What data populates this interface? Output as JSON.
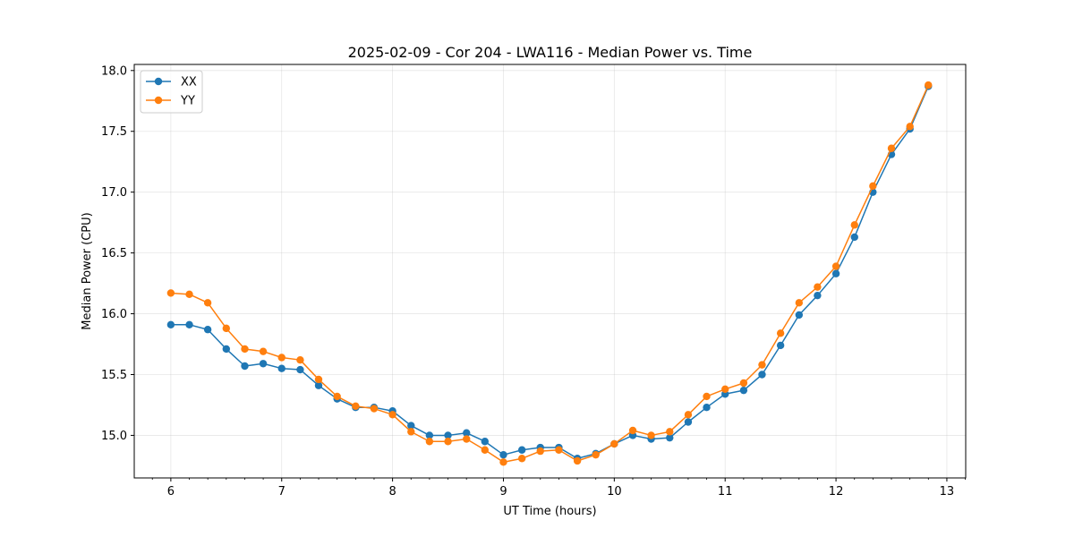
{
  "chart_data": {
    "type": "line",
    "title": "2025-02-09 - Cor 204 - LWA116 - Median Power vs. Time",
    "xlabel": "UT Time (hours)",
    "ylabel": "Median Power (CPU)",
    "xlim": [
      5.67,
      13.17
    ],
    "ylim": [
      14.65,
      18.05
    ],
    "xticks": [
      6,
      7,
      8,
      9,
      10,
      11,
      12,
      13
    ],
    "xtick_labels": [
      "6",
      "7",
      "8",
      "9",
      "10",
      "11",
      "12",
      "13"
    ],
    "yticks": [
      15.0,
      15.5,
      16.0,
      16.5,
      17.0,
      17.5,
      18.0
    ],
    "ytick_labels": [
      "15.0",
      "15.5",
      "16.0",
      "16.5",
      "17.0",
      "17.5",
      "18.0"
    ],
    "grid": true,
    "legend_position": "top-left",
    "x": [
      6.0,
      6.167,
      6.333,
      6.5,
      6.667,
      6.833,
      7.0,
      7.167,
      7.333,
      7.5,
      7.667,
      7.833,
      8.0,
      8.167,
      8.333,
      8.5,
      8.667,
      8.833,
      9.0,
      9.167,
      9.333,
      9.5,
      9.667,
      9.833,
      10.0,
      10.167,
      10.333,
      10.5,
      10.667,
      10.833,
      11.0,
      11.167,
      11.333,
      11.5,
      11.667,
      11.833,
      12.0,
      12.167,
      12.333,
      12.5,
      12.667,
      12.833
    ],
    "series": [
      {
        "name": "XX",
        "color": "#1f77b4",
        "values": [
          15.91,
          15.91,
          15.87,
          15.71,
          15.57,
          15.59,
          15.55,
          15.54,
          15.41,
          15.3,
          15.23,
          15.23,
          15.2,
          15.08,
          15.0,
          15.0,
          15.02,
          14.95,
          14.84,
          14.88,
          14.9,
          14.9,
          14.81,
          14.85,
          14.93,
          15.0,
          14.97,
          14.98,
          15.11,
          15.23,
          15.34,
          15.37,
          15.5,
          15.74,
          15.99,
          16.15,
          16.33,
          16.63,
          17.0,
          17.31,
          17.52,
          17.87
        ]
      },
      {
        "name": "YY",
        "color": "#ff7f0e",
        "values": [
          16.17,
          16.16,
          16.09,
          15.88,
          15.71,
          15.69,
          15.64,
          15.62,
          15.46,
          15.32,
          15.24,
          15.22,
          15.17,
          15.03,
          14.95,
          14.95,
          14.97,
          14.88,
          14.78,
          14.81,
          14.87,
          14.88,
          14.79,
          14.84,
          14.93,
          15.04,
          15.0,
          15.03,
          15.17,
          15.32,
          15.38,
          15.43,
          15.58,
          15.84,
          16.09,
          16.22,
          16.39,
          16.73,
          17.05,
          17.36,
          17.54,
          17.88
        ]
      }
    ]
  }
}
